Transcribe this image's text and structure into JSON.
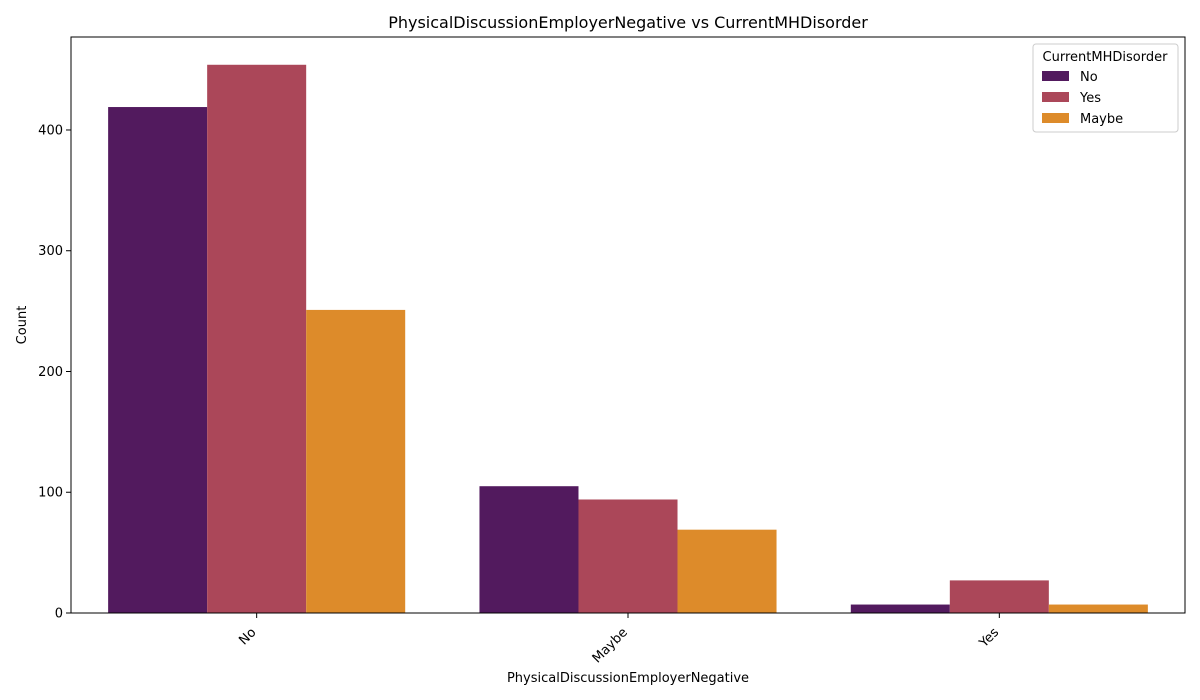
{
  "chart_data": {
    "type": "bar",
    "title": "PhysicalDiscussionEmployerNegative vs CurrentMHDisorder",
    "xlabel": "PhysicalDiscussionEmployerNegative",
    "ylabel": "Count",
    "categories": [
      "No",
      "Maybe",
      "Yes"
    ],
    "series": [
      {
        "name": "No",
        "color": "#521a5e",
        "values": [
          419,
          105,
          7
        ]
      },
      {
        "name": "Yes",
        "color": "#ab4759",
        "values": [
          454,
          94,
          27
        ]
      },
      {
        "name": "Maybe",
        "color": "#dd8b2a",
        "values": [
          251,
          69,
          7
        ]
      }
    ],
    "ylim": [
      0,
      477
    ],
    "yticks": [
      0,
      100,
      200,
      300,
      400
    ],
    "legend": {
      "title": "CurrentMHDisorder",
      "placement": "top-right"
    },
    "grid": false
  }
}
